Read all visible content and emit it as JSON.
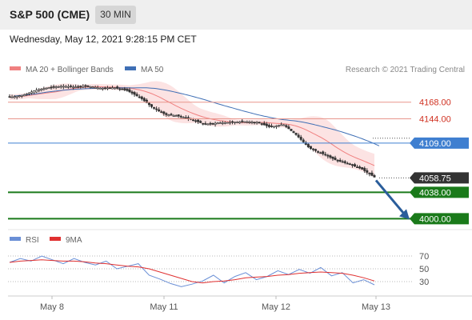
{
  "header": {
    "title": "S&P 500 (CME)",
    "timeframe": "30 MIN"
  },
  "datetime": "Wednesday, May 12, 2021 9:28:15 PM CET",
  "colors": {
    "bollinger": "#f08080",
    "ma50": "#3f6fb5",
    "candle": "#333333",
    "resistance": "#e8968c",
    "pivot": "#3f7fd0",
    "support": "#1a7a1a",
    "arrow": "#2a5d9b",
    "rsi": "#6a8fd6",
    "rsi_ma": "#e03030"
  },
  "chart_data": [
    {
      "type": "candlestick",
      "legend": [
        {
          "label": "MA 20 + Bollinger Bands",
          "color": "#f08080"
        },
        {
          "label": "MA 50",
          "color": "#3f6fb5"
        }
      ],
      "credit": "Research © 2021 Trading Central",
      "x_tick_labels": [
        "May 8",
        "May 11",
        "May 12",
        "May 13"
      ],
      "ylim": [
        3990,
        4200
      ],
      "approx_close_path": [
        4175,
        4178,
        4185,
        4189,
        4191,
        4190,
        4191,
        4188,
        4189,
        4185,
        4175,
        4160,
        4150,
        4148,
        4143,
        4136,
        4138,
        4139,
        4140,
        4139,
        4132,
        4136,
        4121,
        4102,
        4094,
        4085,
        4079,
        4072,
        4060
      ],
      "current_price": {
        "value": 4058.75,
        "label": "4058.75"
      },
      "levels": [
        {
          "value": 4168.0,
          "label": "4168.00",
          "kind": "resistance"
        },
        {
          "value": 4144.0,
          "label": "4144.00",
          "kind": "resistance"
        },
        {
          "value": 4109.0,
          "label": "4109.00",
          "kind": "pivot"
        },
        {
          "value": 4038.0,
          "label": "4038.00",
          "kind": "support"
        },
        {
          "value": 4000.0,
          "label": "4000.00",
          "kind": "support"
        }
      ],
      "forecast_arrow": {
        "from": 4058.75,
        "to": 4000.0
      }
    },
    {
      "type": "line",
      "legend": [
        {
          "label": "RSI",
          "color": "#6a8fd6"
        },
        {
          "label": "9MA",
          "color": "#e03030"
        }
      ],
      "ylim": [
        15,
        80
      ],
      "y_ticks": [
        70,
        50,
        30
      ],
      "series": [
        {
          "name": "RSI",
          "values": [
            60,
            66,
            62,
            70,
            64,
            58,
            66,
            60,
            56,
            62,
            50,
            54,
            58,
            40,
            34,
            27,
            22,
            26,
            31,
            40,
            28,
            38,
            44,
            33,
            38,
            47,
            41,
            49,
            43,
            52,
            39,
            44,
            28,
            33,
            25
          ]
        },
        {
          "name": "9MA",
          "values": [
            60,
            62,
            63,
            64,
            63,
            62,
            62,
            61,
            59,
            58,
            56,
            54,
            53,
            50,
            45,
            40,
            35,
            30,
            28,
            30,
            31,
            33,
            36,
            37,
            38,
            40,
            41,
            43,
            44,
            45,
            44,
            43,
            40,
            36,
            31
          ]
        }
      ]
    }
  ]
}
